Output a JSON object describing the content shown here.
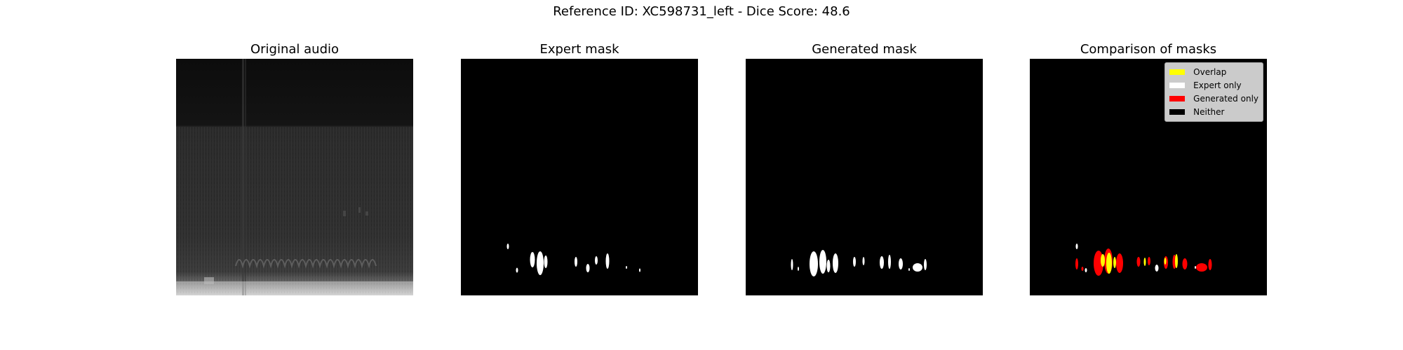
{
  "figure": {
    "title": "Reference ID: XC598731_left - Dice Score: 48.6"
  },
  "panels": [
    {
      "title": "Original audio",
      "kind": "spectrogram"
    },
    {
      "title": "Expert mask",
      "kind": "expert"
    },
    {
      "title": "Generated mask",
      "kind": "generated"
    },
    {
      "title": "Comparison of masks",
      "kind": "comparison"
    }
  ],
  "legend": {
    "items": [
      {
        "label": "Overlap",
        "color": "#ffff00"
      },
      {
        "label": "Expert only",
        "color": "#ffffff"
      },
      {
        "label": "Generated only",
        "color": "#ff0000"
      },
      {
        "label": "Neither",
        "color": "#000000"
      }
    ]
  }
}
